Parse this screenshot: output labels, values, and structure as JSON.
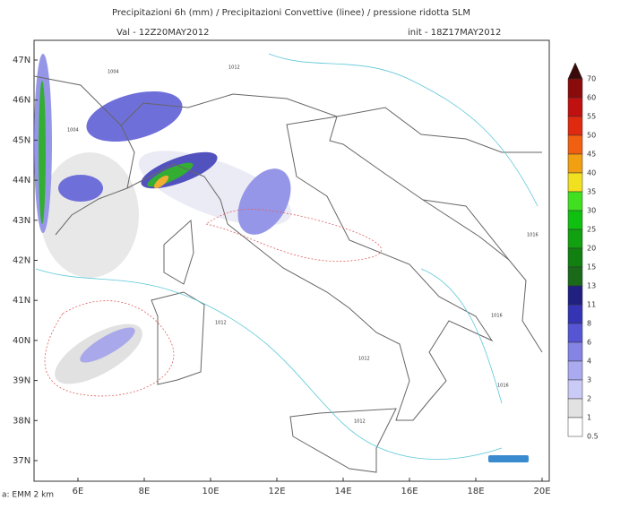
{
  "header": {
    "title": "Precipitazioni 6h (mm) / Precipitazioni Convettive (linee) / pressione ridotta SLM",
    "valid": "Val  -  12Z20MAY2012",
    "init": "init  -  18Z17MAY2012"
  },
  "map": {
    "latitude_labels": [
      "47N",
      "46N",
      "45N",
      "44N",
      "43N",
      "42N",
      "41N",
      "40N",
      "39N",
      "38N",
      "37N"
    ],
    "longitude_labels": [
      "6E",
      "8E",
      "10E",
      "12E",
      "14E",
      "16E",
      "18E",
      "20E"
    ],
    "isobar_labels": [
      "1004",
      "1004",
      "1012",
      "1012",
      "1012",
      "1012",
      "1016",
      "1016",
      "1016"
    ]
  },
  "colorbar": {
    "levels": [
      70,
      60,
      55,
      50,
      45,
      40,
      35,
      30,
      25,
      20,
      15,
      13,
      11,
      8,
      6,
      4,
      3,
      2,
      1,
      0.5
    ],
    "colors": [
      "#3a0a0a",
      "#8b0a0a",
      "#c01010",
      "#e02a10",
      "#f06010",
      "#f0a010",
      "#f0e020",
      "#40e020",
      "#10c010",
      "#10a010",
      "#108010",
      "#1a6a1a",
      "#202080",
      "#3434b4",
      "#5656d4",
      "#8484e4",
      "#aaaaf0",
      "#cacaf6",
      "#e2e2e2",
      "#ffffff"
    ]
  },
  "footer": {
    "source": "a: EMM 2 km"
  }
}
